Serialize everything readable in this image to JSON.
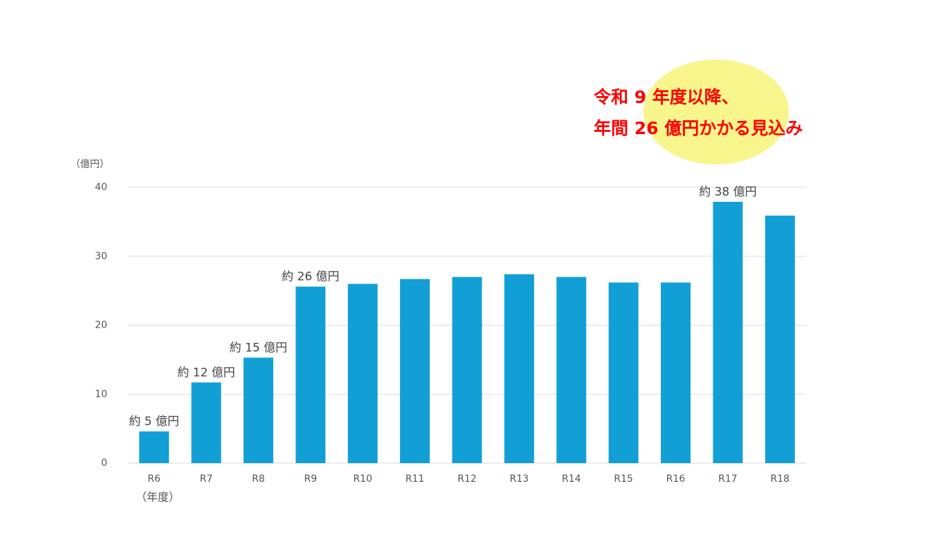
{
  "chart_data": {
    "type": "bar",
    "y_label": "（億円）",
    "x_label": "（年度）",
    "annotations": [
      "令和 9 年度以降、",
      "年間 26 億円かかる見込み"
    ],
    "categories": [
      "R6",
      "R7",
      "R8",
      "R9",
      "R10",
      "R11",
      "R12",
      "R13",
      "R14",
      "R15",
      "R16",
      "R17",
      "R18"
    ],
    "values": [
      4.6,
      11.7,
      15.3,
      25.6,
      26.0,
      26.7,
      27.0,
      27.4,
      27.0,
      26.2,
      26.2,
      37.9,
      35.9
    ],
    "value_labels": [
      "約 5 億円",
      "約 12 億円",
      "約 15 億円",
      "約 26 億円",
      null,
      null,
      null,
      null,
      null,
      null,
      null,
      "約 38 億円",
      null
    ],
    "color": "#129fd6",
    "ylim": [
      0,
      40
    ],
    "yticks": [
      0,
      10,
      20,
      30,
      40
    ],
    "grid": true
  }
}
